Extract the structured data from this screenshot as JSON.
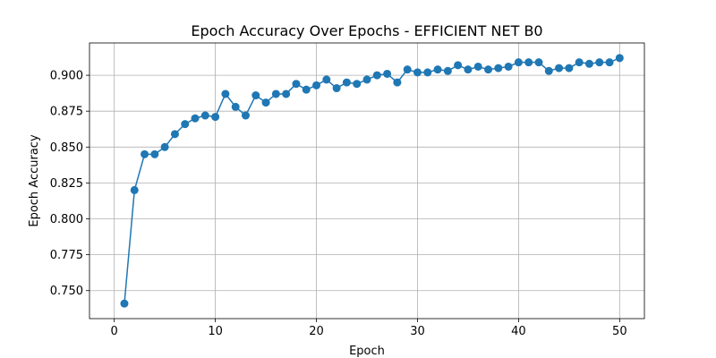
{
  "chart_data": {
    "type": "line",
    "title": "Epoch Accuracy Over Epochs - EFFICIENT NET B0",
    "xlabel": "Epoch",
    "ylabel": "Epoch Accuracy",
    "xlim": [
      -2.45,
      52.45
    ],
    "ylim": [
      0.7305,
      0.9225
    ],
    "xticks": [
      0,
      10,
      20,
      30,
      40,
      50
    ],
    "yticks": [
      0.75,
      0.775,
      0.8,
      0.825,
      0.85,
      0.875,
      0.9
    ],
    "xtick_labels": [
      "0",
      "10",
      "20",
      "30",
      "40",
      "50"
    ],
    "ytick_labels": [
      "0.750",
      "0.775",
      "0.800",
      "0.825",
      "0.850",
      "0.875",
      "0.900"
    ],
    "grid": true,
    "color": "#1f77b4",
    "marker": "circle",
    "x": [
      1,
      2,
      3,
      4,
      5,
      6,
      7,
      8,
      9,
      10,
      11,
      12,
      13,
      14,
      15,
      16,
      17,
      18,
      19,
      20,
      21,
      22,
      23,
      24,
      25,
      26,
      27,
      28,
      29,
      30,
      31,
      32,
      33,
      34,
      35,
      36,
      37,
      38,
      39,
      40,
      41,
      42,
      43,
      44,
      45,
      46,
      47,
      48,
      49,
      50
    ],
    "y": [
      0.741,
      0.82,
      0.845,
      0.845,
      0.85,
      0.859,
      0.866,
      0.87,
      0.872,
      0.871,
      0.887,
      0.878,
      0.872,
      0.886,
      0.881,
      0.887,
      0.887,
      0.894,
      0.89,
      0.893,
      0.897,
      0.891,
      0.895,
      0.894,
      0.897,
      0.9,
      0.901,
      0.895,
      0.904,
      0.902,
      0.902,
      0.904,
      0.903,
      0.907,
      0.904,
      0.906,
      0.904,
      0.905,
      0.906,
      0.909,
      0.909,
      0.909,
      0.903,
      0.905,
      0.905,
      0.909,
      0.908,
      0.909,
      0.909,
      0.912
    ]
  }
}
